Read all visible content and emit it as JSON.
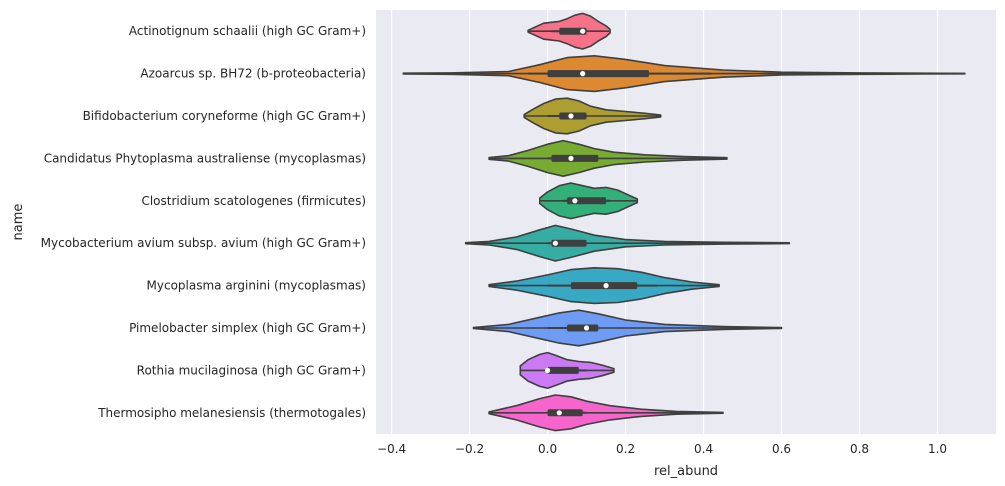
{
  "chart_data": {
    "type": "violin",
    "orientation": "horizontal",
    "xlabel": "rel_abund",
    "ylabel": "name",
    "xlim": [
      -0.44,
      1.15
    ],
    "x_ticks": [
      -0.4,
      -0.2,
      0.0,
      0.2,
      0.4,
      0.6,
      0.8,
      1.0
    ],
    "x_tick_labels": [
      "−0.4",
      "−0.2",
      "0.0",
      "0.2",
      "0.4",
      "0.6",
      "0.8",
      "1.0"
    ],
    "grid": true,
    "background": "#eaeaf2",
    "categories": [
      {
        "name": "Actinotignum schaalii (high GC Gram+)",
        "color": "#f77189",
        "min": -0.05,
        "max": 0.16,
        "q1": 0.03,
        "median": 0.09,
        "q3": 0.1,
        "whisker_low": 0.01,
        "whisker_high": 0.1,
        "density_x": [
          -0.05,
          -0.03,
          -0.01,
          0.01,
          0.03,
          0.05,
          0.07,
          0.09,
          0.11,
          0.13,
          0.15,
          0.16
        ],
        "density": [
          0.05,
          0.25,
          0.45,
          0.5,
          0.55,
          0.7,
          0.9,
          1.0,
          0.85,
          0.55,
          0.3,
          0.1
        ]
      },
      {
        "name": "Azoarcus sp. BH72 (b-proteobacteria)",
        "color": "#dc8932",
        "min": -0.37,
        "max": 1.07,
        "q1": 0.0,
        "median": 0.09,
        "q3": 0.26,
        "whisker_low": -0.05,
        "whisker_high": 0.42,
        "density_x": [
          -0.37,
          -0.25,
          -0.1,
          -0.02,
          0.05,
          0.12,
          0.2,
          0.3,
          0.45,
          0.6,
          0.8,
          0.95,
          1.07
        ],
        "density": [
          0.02,
          0.04,
          0.12,
          0.5,
          0.9,
          1.0,
          0.8,
          0.45,
          0.2,
          0.08,
          0.04,
          0.02,
          0.01
        ]
      },
      {
        "name": "Bifidobacterium coryneforme (high GC Gram+)",
        "color": "#ae9d31",
        "min": -0.06,
        "max": 0.29,
        "q1": 0.03,
        "median": 0.06,
        "q3": 0.1,
        "whisker_low": 0.0,
        "whisker_high": 0.1,
        "density_x": [
          -0.06,
          -0.04,
          -0.01,
          0.02,
          0.05,
          0.08,
          0.11,
          0.15,
          0.2,
          0.25,
          0.29
        ],
        "density": [
          0.08,
          0.35,
          0.7,
          0.95,
          1.0,
          0.85,
          0.55,
          0.35,
          0.25,
          0.15,
          0.05
        ]
      },
      {
        "name": "Candidatus Phytoplasma australiense (mycoplasmas)",
        "color": "#77ab31",
        "min": -0.15,
        "max": 0.46,
        "q1": 0.01,
        "median": 0.06,
        "q3": 0.13,
        "whisker_low": 0.0,
        "whisker_high": 0.13,
        "density_x": [
          -0.15,
          -0.1,
          -0.05,
          0.0,
          0.04,
          0.08,
          0.12,
          0.17,
          0.25,
          0.35,
          0.46
        ],
        "density": [
          0.05,
          0.15,
          0.45,
          0.8,
          1.0,
          0.8,
          0.55,
          0.35,
          0.2,
          0.1,
          0.04
        ]
      },
      {
        "name": "Clostridium scatologenes (firmicutes)",
        "color": "#33b07a",
        "min": -0.02,
        "max": 0.23,
        "q1": 0.05,
        "median": 0.07,
        "q3": 0.15,
        "whisker_low": 0.04,
        "whisker_high": 0.16,
        "density_x": [
          -0.02,
          0.0,
          0.03,
          0.06,
          0.09,
          0.12,
          0.15,
          0.18,
          0.21,
          0.23
        ],
        "density": [
          0.15,
          0.5,
          0.85,
          1.0,
          0.85,
          0.7,
          0.75,
          0.6,
          0.3,
          0.1
        ]
      },
      {
        "name": "Mycobacterium avium subsp. avium (high GC Gram+)",
        "color": "#36ada4",
        "min": -0.21,
        "max": 0.62,
        "q1": 0.01,
        "median": 0.02,
        "q3": 0.1,
        "whisker_low": 0.0,
        "whisker_high": 0.1,
        "density_x": [
          -0.21,
          -0.15,
          -0.08,
          -0.02,
          0.02,
          0.06,
          0.12,
          0.2,
          0.3,
          0.45,
          0.62
        ],
        "density": [
          0.03,
          0.1,
          0.35,
          0.75,
          1.0,
          0.8,
          0.45,
          0.2,
          0.1,
          0.05,
          0.02
        ]
      },
      {
        "name": "Mycoplasma arginini (mycoplasmas)",
        "color": "#38a9c5",
        "min": -0.15,
        "max": 0.44,
        "q1": 0.06,
        "median": 0.15,
        "q3": 0.23,
        "whisker_low": 0.0,
        "whisker_high": 0.28,
        "density_x": [
          -0.15,
          -0.08,
          0.0,
          0.06,
          0.12,
          0.18,
          0.24,
          0.3,
          0.37,
          0.44
        ],
        "density": [
          0.05,
          0.25,
          0.6,
          0.9,
          1.0,
          0.95,
          0.75,
          0.45,
          0.2,
          0.05
        ]
      },
      {
        "name": "Pimelobacter simplex (high GC Gram+)",
        "color": "#6e9bf4",
        "min": -0.19,
        "max": 0.6,
        "q1": 0.05,
        "median": 0.1,
        "q3": 0.13,
        "whisker_low": 0.0,
        "whisker_high": 0.13,
        "density_x": [
          -0.19,
          -0.1,
          -0.03,
          0.03,
          0.08,
          0.13,
          0.2,
          0.3,
          0.45,
          0.6
        ],
        "density": [
          0.03,
          0.2,
          0.55,
          0.85,
          1.0,
          0.8,
          0.45,
          0.2,
          0.08,
          0.02
        ]
      },
      {
        "name": "Rothia mucilaginosa (high GC Gram+)",
        "color": "#cc7af4",
        "min": -0.07,
        "max": 0.17,
        "q1": 0.0,
        "median": 0.0,
        "q3": 0.08,
        "whisker_low": 0.0,
        "whisker_high": 0.1,
        "density_x": [
          -0.07,
          -0.05,
          -0.02,
          0.0,
          0.02,
          0.05,
          0.08,
          0.11,
          0.14,
          0.17
        ],
        "density": [
          0.25,
          0.6,
          0.9,
          1.0,
          0.85,
          0.6,
          0.5,
          0.45,
          0.3,
          0.1
        ]
      },
      {
        "name": "Thermosipho melanesiensis (thermotogales)",
        "color": "#f565cc",
        "min": -0.15,
        "max": 0.45,
        "q1": 0.0,
        "median": 0.03,
        "q3": 0.09,
        "whisker_low": 0.0,
        "whisker_high": 0.1,
        "density_x": [
          -0.15,
          -0.08,
          -0.02,
          0.02,
          0.06,
          0.1,
          0.16,
          0.24,
          0.33,
          0.45
        ],
        "density": [
          0.05,
          0.4,
          0.8,
          1.0,
          0.9,
          0.65,
          0.4,
          0.2,
          0.08,
          0.02
        ]
      }
    ]
  }
}
